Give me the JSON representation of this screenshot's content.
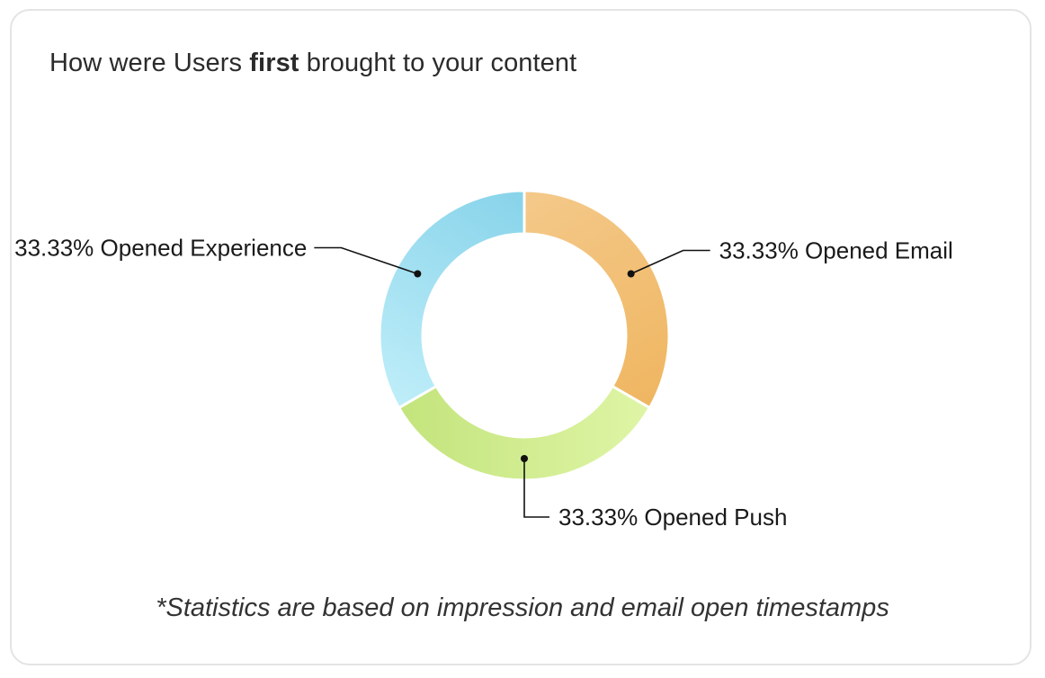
{
  "card": {
    "title_prefix": "How were Users ",
    "title_emphasis": "first",
    "title_suffix": " brought to your content",
    "footnote": "*Statistics are based on impression and email open timestamps"
  },
  "chart_data": {
    "type": "pie",
    "donut": true,
    "slices": [
      {
        "label": "33.33% Opened Email",
        "name": "Opened Email",
        "value": 33.33,
        "color_start": "#f4c98a",
        "color_end": "#efb661"
      },
      {
        "label": "33.33% Opened Push",
        "name": "Opened Push",
        "value": 33.33,
        "color_start": "#dff5a6",
        "color_end": "#c3e47c"
      },
      {
        "label": "33.33% Opened Experience",
        "name": "Opened Experience",
        "value": 33.33,
        "color_start": "#bfeef9",
        "color_end": "#87d3ea"
      }
    ],
    "legend": "none"
  }
}
